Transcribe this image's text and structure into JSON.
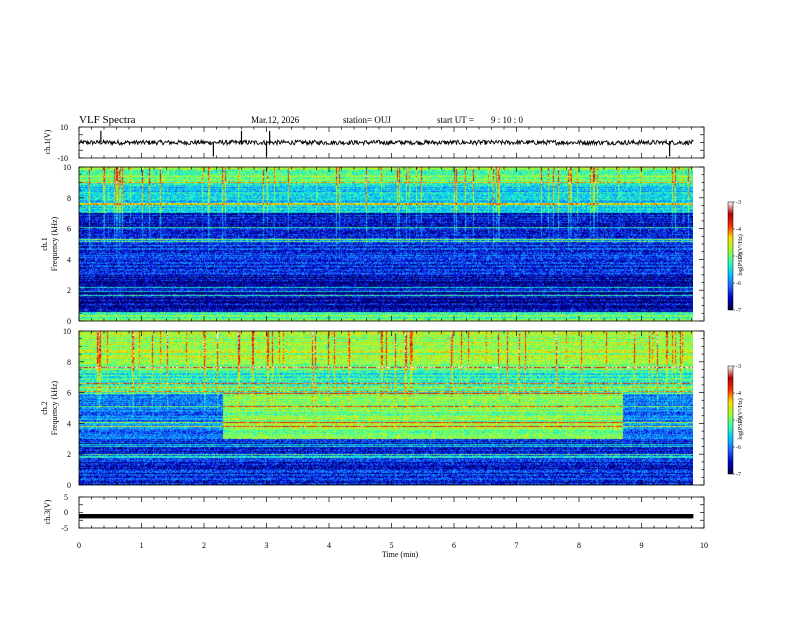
{
  "header": {
    "title": "VLF Spectra",
    "date": "Mar.12, 2026",
    "station": "station= OUJ",
    "start_label": "start  UT =",
    "start_time": "9 : 10 : 0"
  },
  "colorbar": {
    "label": "log(PSD)(V²/Hz)",
    "ticks": [
      "-3",
      "-4",
      "-5",
      "-6",
      "-7"
    ],
    "colors": [
      "#00003a",
      "#0000c8",
      "#1e64ff",
      "#00c8ff",
      "#32ffb0",
      "#a0ff32",
      "#ffe000",
      "#ff3000",
      "#b40000",
      "#ffffff"
    ]
  },
  "chart_data": [
    {
      "type": "line",
      "name": "ch1-waveform",
      "ylabel": "ch.1(V)",
      "ylim": [
        -10,
        10
      ],
      "ytick_labels": [
        "10",
        "-10"
      ],
      "baseline": 0,
      "noise_amplitude": 1.5,
      "spikes_min": [
        0.35,
        2.15,
        2.6,
        3.0,
        3.05,
        9.45
      ],
      "series_color": "#000000"
    },
    {
      "type": "heatmap",
      "name": "ch1-spectrogram",
      "ylabel": "Frequency (kHz)",
      "ylabel_channel": "ch.1",
      "ylim": [
        0,
        10
      ],
      "ytick_labels": [
        "10",
        "8",
        "6",
        "4",
        "2",
        "0"
      ],
      "zlim": [
        -7,
        -3
      ],
      "bands": [
        {
          "f0": 0.0,
          "f1": 0.6,
          "level": -5.0
        },
        {
          "f0": 0.6,
          "f1": 3.0,
          "level": -6.6
        },
        {
          "f0": 3.0,
          "f1": 5.5,
          "level": -6.3
        },
        {
          "f0": 5.5,
          "f1": 7.0,
          "level": -6.5
        },
        {
          "f0": 7.0,
          "f1": 9.0,
          "level": -5.6
        },
        {
          "f0": 9.0,
          "f1": 10.0,
          "level": -5.0
        }
      ]
    },
    {
      "type": "heatmap",
      "name": "ch2-spectrogram",
      "ylabel": "Frequency (kHz)",
      "ylabel_channel": "ch.2",
      "ylim": [
        0,
        10
      ],
      "ytick_labels": [
        "10",
        "8",
        "6",
        "4",
        "2",
        "0"
      ],
      "zlim": [
        -7,
        -3
      ],
      "bands": [
        {
          "f0": 0.0,
          "f1": 3.0,
          "level": -6.4
        },
        {
          "f0": 3.0,
          "f1": 6.0,
          "level": -6.0
        },
        {
          "f0": 6.0,
          "f1": 7.5,
          "level": -5.3
        },
        {
          "f0": 7.5,
          "f1": 10.0,
          "level": -4.8
        }
      ],
      "enhanced_interval_min": [
        2.3,
        8.7
      ],
      "enhanced_range_khz": [
        3.0,
        6.0
      ]
    },
    {
      "type": "line",
      "name": "ch3-waveform",
      "ylabel": "ch.3(V)",
      "ylim": [
        -5,
        5
      ],
      "ytick_labels": [
        "5",
        "0",
        "-5"
      ],
      "baseline": -1.2,
      "series_color": "#000000"
    }
  ],
  "xaxis": {
    "label": "Time (min)",
    "range": [
      0,
      10
    ],
    "data_end": 9.83,
    "tick_labels": [
      "0",
      "1",
      "2",
      "3",
      "4",
      "5",
      "6",
      "7",
      "8",
      "9",
      "10"
    ]
  }
}
